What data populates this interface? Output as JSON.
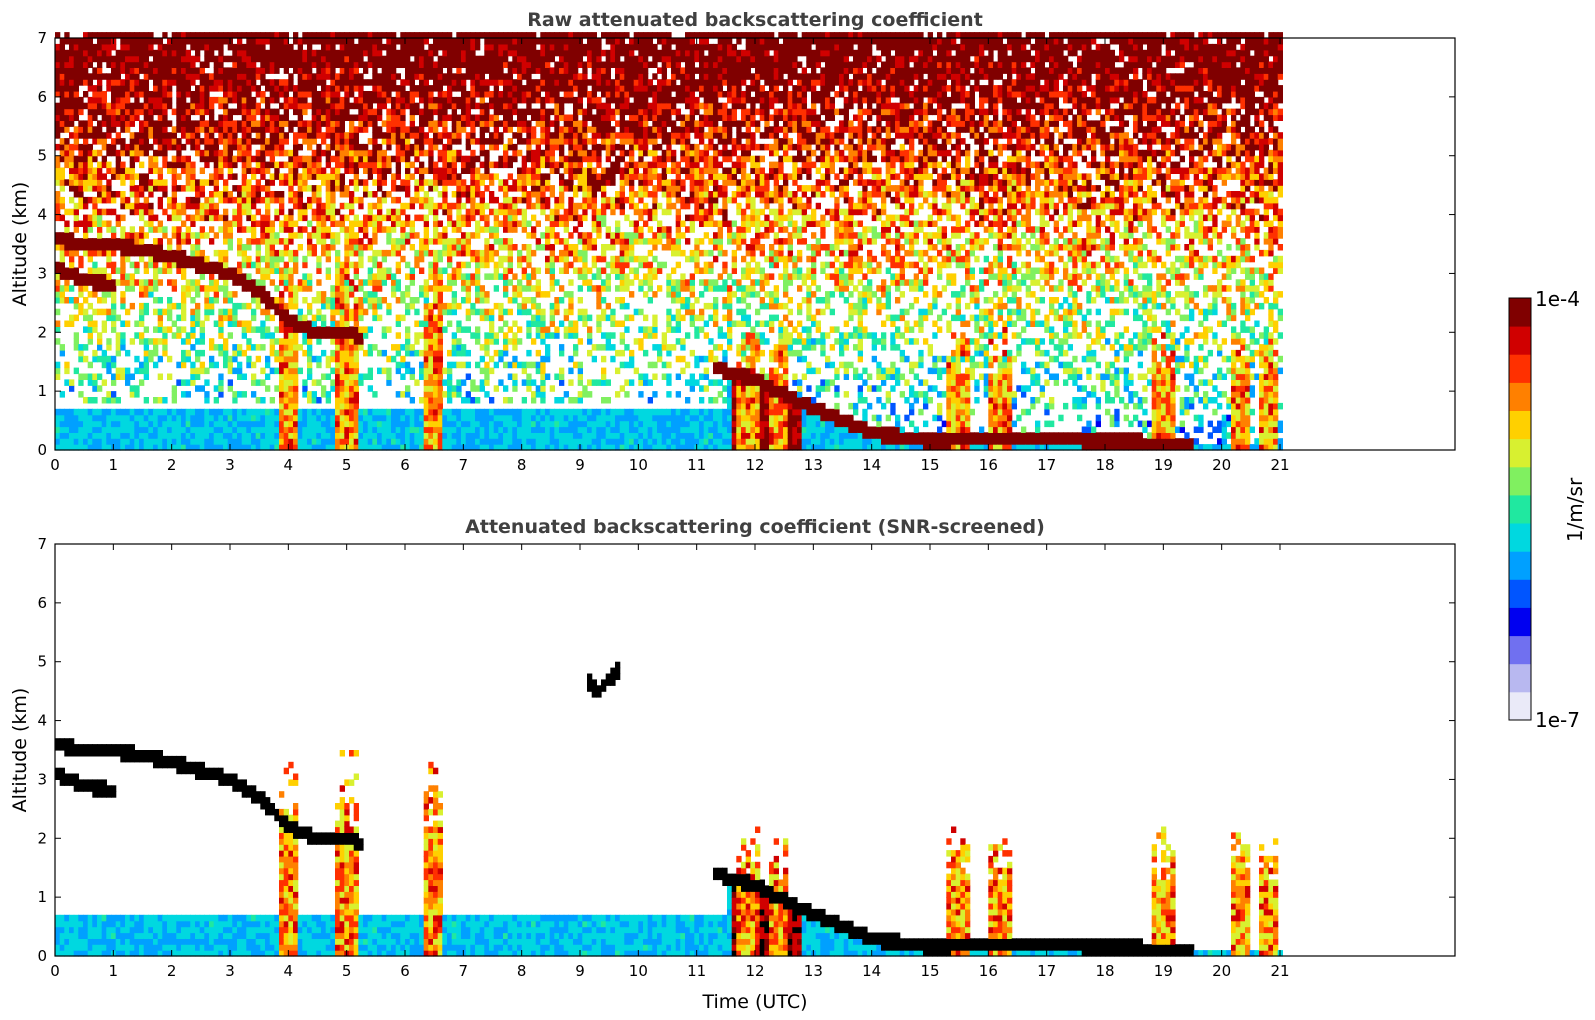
{
  "chart_data": [
    {
      "type": "heatmap",
      "title": "Raw attenuated backscattering coefficient",
      "xlabel": "",
      "ylabel": "Altitude (km)",
      "xlim": [
        0,
        24
      ],
      "ylim": [
        0,
        7
      ],
      "xticks": [
        "0",
        "1",
        "2",
        "3",
        "4",
        "5",
        "6",
        "7",
        "8",
        "9",
        "10",
        "11",
        "12",
        "13",
        "14",
        "15",
        "16",
        "17",
        "18",
        "19",
        "20",
        "21"
      ],
      "yticks": [
        "0",
        "1",
        "2",
        "3",
        "4",
        "5",
        "6",
        "7"
      ],
      "data_end_hour": 21,
      "layers": [
        {
          "name": "surface aerosol",
          "x": [
            0,
            11.6
          ],
          "y": [
            0,
            0.8
          ],
          "level": 0.4
        },
        {
          "name": "noise background",
          "x": [
            0,
            21
          ],
          "y": [
            0.8,
            7
          ],
          "level": 0.65
        },
        {
          "name": "elevated cloud layer",
          "points": [
            [
              0,
              3.6
            ],
            [
              0.5,
              3.5
            ],
            [
              1,
              3.5
            ],
            [
              2,
              3.3
            ],
            [
              3,
              3.0
            ],
            [
              3.5,
              2.7
            ],
            [
              4,
              2.2
            ],
            [
              4.5,
              2.0
            ],
            [
              5,
              2.0
            ],
            [
              5.3,
              1.9
            ]
          ],
          "level": 1.0
        },
        {
          "name": "lower cloud fragment",
          "points": [
            [
              0,
              3.1
            ],
            [
              0.5,
              2.9
            ],
            [
              1,
              2.8
            ]
          ],
          "level": 1.0
        },
        {
          "name": "mid-level cloud",
          "points": [
            [
              9.1,
              4.7
            ],
            [
              9.3,
              4.5
            ],
            [
              9.5,
              4.7
            ],
            [
              9.7,
              4.9
            ]
          ],
          "level": 1.0
        },
        {
          "name": "boundary layer top",
          "points": [
            [
              11.3,
              1.4
            ],
            [
              12,
              1.2
            ],
            [
              12.8,
              0.8
            ],
            [
              13.5,
              0.5
            ],
            [
              14,
              0.3
            ],
            [
              15,
              0.15
            ],
            [
              16,
              0.2
            ],
            [
              17,
              0.2
            ],
            [
              18,
              0.15
            ],
            [
              19,
              0.12
            ],
            [
              19.5,
              0.1
            ]
          ],
          "level": 1.0
        },
        {
          "name": "convective plumes",
          "x_centers": [
            4.0,
            5.0,
            6.5,
            11.9,
            12.4,
            15.5,
            16.2,
            19.0,
            20.3,
            20.8
          ],
          "level": 0.85
        }
      ]
    },
    {
      "type": "heatmap",
      "title": "Attenuated backscattering coefficient (SNR-screened)",
      "xlabel": "Time (UTC)",
      "ylabel": "Altitude (km)",
      "xlim": [
        0,
        24
      ],
      "ylim": [
        0,
        7
      ],
      "xticks": [
        "0",
        "1",
        "2",
        "3",
        "4",
        "5",
        "6",
        "7",
        "8",
        "9",
        "10",
        "11",
        "12",
        "13",
        "14",
        "15",
        "16",
        "17",
        "18",
        "19",
        "20",
        "21"
      ],
      "yticks": [
        "0",
        "1",
        "2",
        "3",
        "4",
        "5",
        "6",
        "7"
      ],
      "data_end_hour": 21
    }
  ],
  "colorbar": {
    "label": "1/m/sr",
    "max_label": "1e-4",
    "min_label": "1e-7",
    "colors": [
      "#eaeaf8",
      "#b8b8f0",
      "#7070f0",
      "#0000f0",
      "#0055ff",
      "#00a0ff",
      "#00d8e0",
      "#20e8a0",
      "#80f060",
      "#d8f030",
      "#ffd000",
      "#ff8000",
      "#ff3000",
      "#d00000",
      "#800000"
    ]
  }
}
